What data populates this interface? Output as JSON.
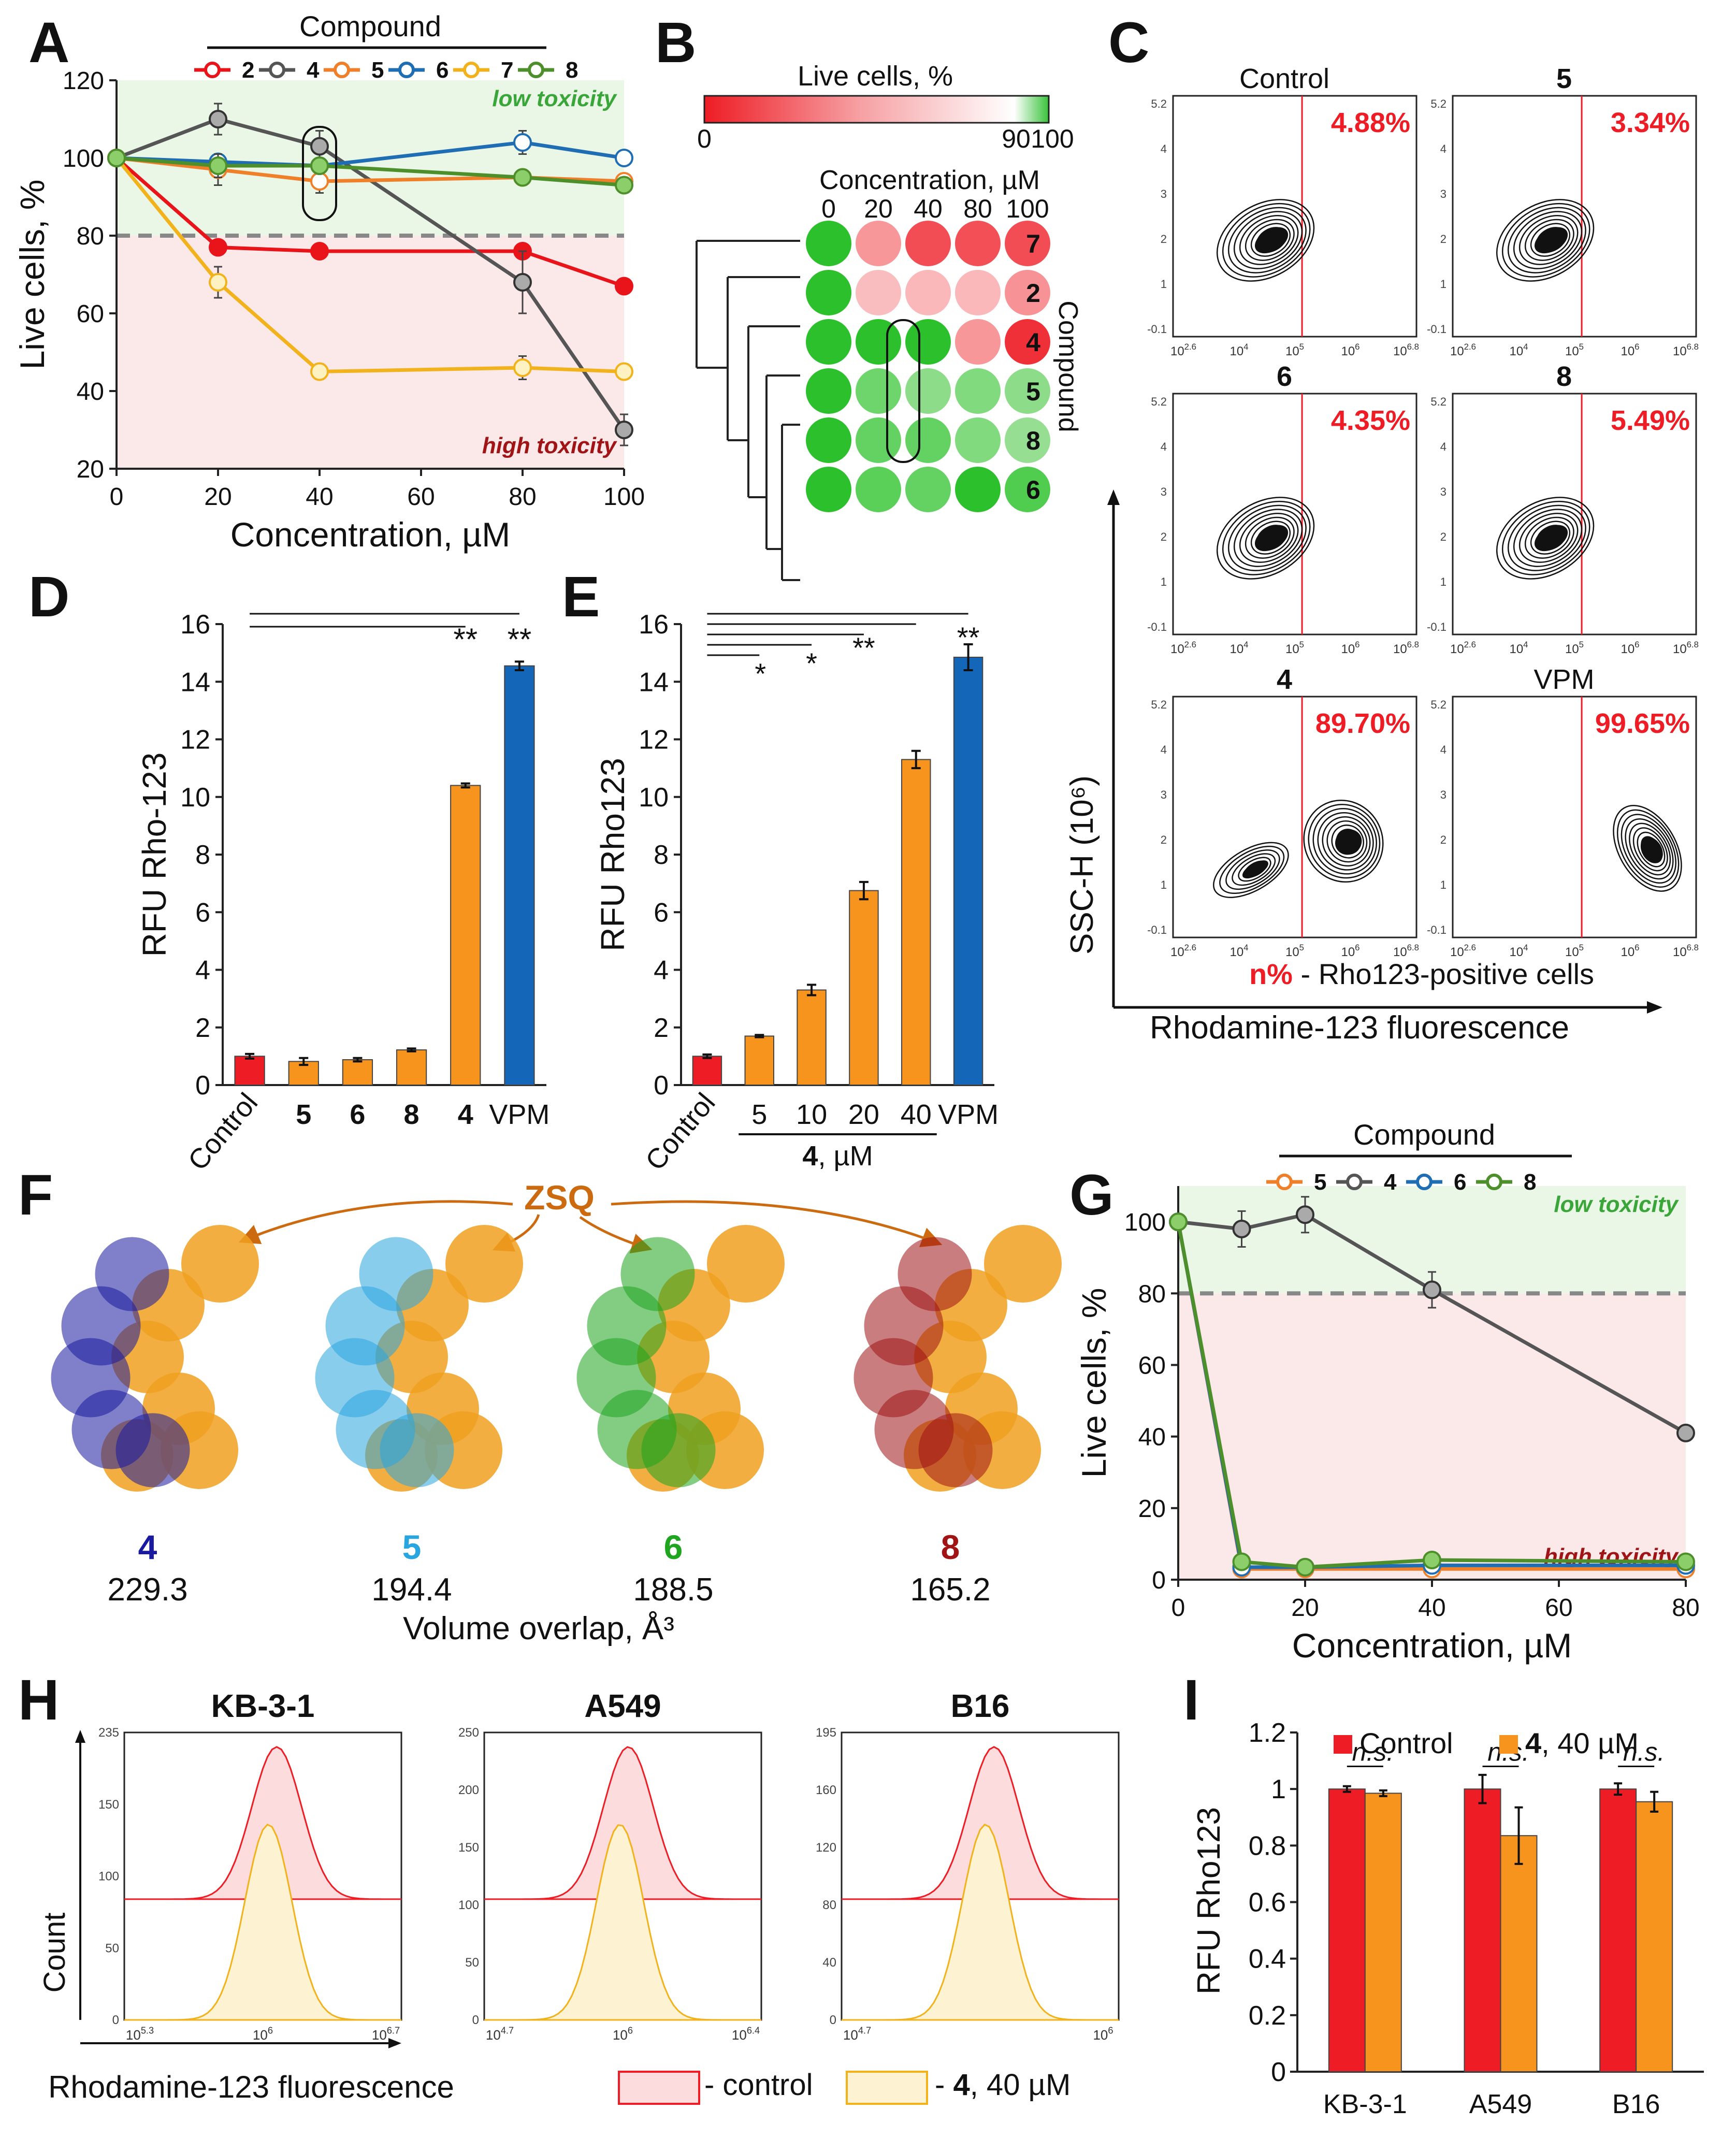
{
  "colors": {
    "c2": "#e8141a",
    "c4": "#555555",
    "c5": "#f07f2a",
    "c6": "#1f6db3",
    "c7": "#f2b21b",
    "c8": "#4d8f2a",
    "orange": "#f7941d",
    "blue": "#1466b8",
    "red": "#ee1c24",
    "green_zone": "#eaf6e6",
    "red_zone": "#fbe9ea",
    "low_tox_text": "#3aa63a",
    "high_tox_text": "#a01416"
  },
  "chart_data": [
    {
      "panel": "A",
      "type": "line",
      "title": "Compound",
      "xlabel": "Concentration, µM",
      "ylabel": "Live cells, %",
      "xlim": [
        0,
        100
      ],
      "ylim": [
        20,
        120
      ],
      "xticks": [
        0,
        20,
        40,
        60,
        80,
        100
      ],
      "yticks": [
        20,
        40,
        60,
        80,
        100,
        120
      ],
      "threshold": 80,
      "zone_high_label": "low toxicity",
      "zone_low_label": "high toxicity",
      "x": [
        0,
        20,
        40,
        80,
        100
      ],
      "series": [
        {
          "name": "2",
          "color_key": "c2",
          "values": [
            100,
            77,
            76,
            76,
            67
          ],
          "err": [
            0,
            1.5,
            1.5,
            1.5,
            1.5
          ]
        },
        {
          "name": "4",
          "color_key": "c4",
          "values": [
            100,
            110,
            103,
            68,
            30
          ],
          "err": [
            0,
            4,
            4,
            8,
            4
          ]
        },
        {
          "name": "5",
          "color_key": "c5",
          "values": [
            100,
            97,
            94,
            95,
            94
          ],
          "err": [
            0,
            4,
            3,
            2,
            2
          ]
        },
        {
          "name": "6",
          "color_key": "c6",
          "values": [
            100,
            99,
            98,
            104,
            100
          ],
          "err": [
            0,
            2,
            2,
            3,
            1
          ]
        },
        {
          "name": "7",
          "color_key": "c7",
          "values": [
            100,
            68,
            45,
            46,
            45
          ],
          "err": [
            0,
            4,
            2,
            3,
            2
          ]
        },
        {
          "name": "8",
          "color_key": "c8",
          "values": [
            100,
            98,
            98,
            95,
            93
          ],
          "err": [
            0,
            3,
            2,
            2,
            2
          ]
        }
      ],
      "highlight_x": 40
    },
    {
      "panel": "B",
      "type": "heatmap",
      "colorbar_label": "Live cells, %",
      "colorbar_ticks": [
        "0",
        "90",
        "100"
      ],
      "xlabel": "Concentration, µM",
      "columns": [
        "0",
        "20",
        "40",
        "80",
        "100"
      ],
      "row_axis_label": "Compound",
      "rows": [
        "7",
        "2",
        "4",
        "5",
        "8",
        "6"
      ],
      "values": [
        [
          100,
          68,
          45,
          46,
          45
        ],
        [
          100,
          77,
          76,
          76,
          67
        ],
        [
          100,
          110,
          103,
          68,
          30
        ],
        [
          100,
          97,
          94,
          95,
          94
        ],
        [
          100,
          98,
          98,
          95,
          93
        ],
        [
          100,
          99,
          98,
          104,
          100
        ]
      ]
    },
    {
      "panel": "C",
      "type": "contour",
      "xlabel": "Rhodamine-123 fluorescence",
      "ylabel": "SSC-H (10⁶)",
      "legend_prefix": "n%",
      "legend_text": " - Rho123-positive cells",
      "yticks": [
        "5.2",
        "4",
        "3",
        "2",
        "1",
        "-0.1"
      ],
      "xticks": [
        "10",
        "10",
        "10",
        "10",
        "10"
      ],
      "xtick_exps": [
        "2.6",
        "4",
        "5",
        "6",
        "6.8"
      ],
      "plots": [
        {
          "label": "Control",
          "bold": false,
          "pct": "4.88%"
        },
        {
          "label": "5",
          "bold": true,
          "pct": "3.34%"
        },
        {
          "label": "6",
          "bold": true,
          "pct": "4.35%"
        },
        {
          "label": "8",
          "bold": true,
          "pct": "5.49%"
        },
        {
          "label": "4",
          "bold": true,
          "pct": "89.70%"
        },
        {
          "label": "VPM",
          "bold": false,
          "pct": "99.65%"
        }
      ]
    },
    {
      "panel": "D",
      "type": "bar",
      "ylabel": "RFU Rho-123",
      "ylim": [
        0,
        16
      ],
      "yticks": [
        0,
        2,
        4,
        6,
        8,
        10,
        12,
        14,
        16
      ],
      "categories": [
        "Control",
        "5",
        "6",
        "8",
        "4",
        "VPM"
      ],
      "values": [
        1.0,
        0.82,
        0.88,
        1.22,
        10.4,
        14.55
      ],
      "err": [
        0.08,
        0.12,
        0.06,
        0.05,
        0.07,
        0.15
      ],
      "sig": [
        "**",
        "**"
      ]
    },
    {
      "panel": "E",
      "type": "bar",
      "ylabel": "RFU Rho123",
      "ylim": [
        0,
        16
      ],
      "yticks": [
        0,
        2,
        4,
        6,
        8,
        10,
        12,
        14,
        16
      ],
      "categories": [
        "Control",
        "5",
        "10",
        "20",
        "40",
        "VPM"
      ],
      "group_label_bold": "4",
      "group_label_rest": ", µM",
      "values": [
        1.0,
        1.7,
        3.3,
        6.75,
        11.3,
        14.85
      ],
      "err": [
        0.06,
        0.04,
        0.18,
        0.3,
        0.3,
        0.45
      ],
      "sig": [
        "*",
        "*",
        "**",
        "**"
      ]
    },
    {
      "panel": "G",
      "type": "line",
      "title": "Compound",
      "xlabel": "Concentration, µM",
      "ylabel": "Live cells, %",
      "xlim": [
        0,
        80
      ],
      "ylim": [
        0,
        110
      ],
      "xticks": [
        0,
        20,
        40,
        60,
        80
      ],
      "yticks": [
        0,
        20,
        40,
        60,
        80,
        100
      ],
      "threshold": 80,
      "zone_high_label": "low toxicity",
      "zone_low_label": "high toxicity",
      "x": [
        0,
        10,
        20,
        40,
        80
      ],
      "series": [
        {
          "name": "5",
          "color_key": "c5",
          "values": [
            100,
            3,
            3,
            3,
            3
          ],
          "err": [
            0,
            0.5,
            0.5,
            0.5,
            0.5
          ]
        },
        {
          "name": "4",
          "color_key": "c4",
          "values": [
            100,
            98,
            102,
            81,
            41
          ],
          "err": [
            0,
            5,
            5,
            5,
            1
          ]
        },
        {
          "name": "6",
          "color_key": "c6",
          "values": [
            100,
            3.5,
            3.5,
            4,
            4
          ],
          "err": [
            0,
            0.5,
            0.5,
            0.5,
            0.5
          ]
        },
        {
          "name": "8",
          "color_key": "c8",
          "values": [
            100,
            5,
            3.5,
            5.5,
            5
          ],
          "err": [
            0,
            0.5,
            0.5,
            0.5,
            0.5
          ]
        }
      ]
    },
    {
      "panel": "H",
      "type": "histogram",
      "xlabel": "Rhodamine-123 fluorescence",
      "ylabel": "Count",
      "legend": [
        {
          "text": " - control"
        },
        {
          "bold": "4",
          "text": ", 40 µM"
        }
      ],
      "legend_prefix": "- ",
      "plots": [
        {
          "label": "KB-3-1",
          "yticks": [
            "235",
            "150",
            "100",
            "50",
            "0"
          ],
          "xtick_exps": [
            "5.3",
            "6",
            "6.7"
          ]
        },
        {
          "label": "A549",
          "yticks": [
            "250",
            "200",
            "150",
            "100",
            "50",
            "0"
          ],
          "xtick_exps": [
            "4.7",
            "6",
            "6.4"
          ]
        },
        {
          "label": "B16",
          "yticks": [
            "195",
            "160",
            "120",
            "80",
            "40",
            "0"
          ],
          "xtick_exps": [
            "4.7",
            "6"
          ]
        }
      ],
      "xtick_base": "10"
    },
    {
      "panel": "I",
      "type": "bar",
      "ylabel": "RFU Rho123",
      "ylim": [
        0,
        1.2
      ],
      "yticks": [
        "0",
        "0.2",
        "0.4",
        "0.6",
        "0.8",
        "1",
        "1.2"
      ],
      "categories": [
        "KB-3-1",
        "A549",
        "B16"
      ],
      "series": [
        {
          "name": "Control",
          "values": [
            1.0,
            1.0,
            1.0
          ],
          "err": [
            0.01,
            0.05,
            0.02
          ]
        },
        {
          "name": "4, 40 µM",
          "bold": "4",
          "rest": ", 40 µM",
          "values": [
            0.985,
            0.835,
            0.955
          ],
          "err": [
            0.01,
            0.1,
            0.035
          ]
        }
      ],
      "ns": "n.s."
    }
  ],
  "panel_labels": [
    "A",
    "B",
    "C",
    "D",
    "E",
    "F",
    "G",
    "H",
    "I"
  ],
  "panel_f": {
    "title": "ZSQ",
    "molecules": [
      {
        "id": "4",
        "overlap": "229.3",
        "color": "#1a1aa0"
      },
      {
        "id": "5",
        "overlap": "194.4",
        "color": "#29a6e0"
      },
      {
        "id": "6",
        "overlap": "188.5",
        "color": "#1fa51f"
      },
      {
        "id": "8",
        "overlap": "165.2",
        "color": "#a01416"
      }
    ],
    "footer": "Volume overlap, Å³"
  }
}
